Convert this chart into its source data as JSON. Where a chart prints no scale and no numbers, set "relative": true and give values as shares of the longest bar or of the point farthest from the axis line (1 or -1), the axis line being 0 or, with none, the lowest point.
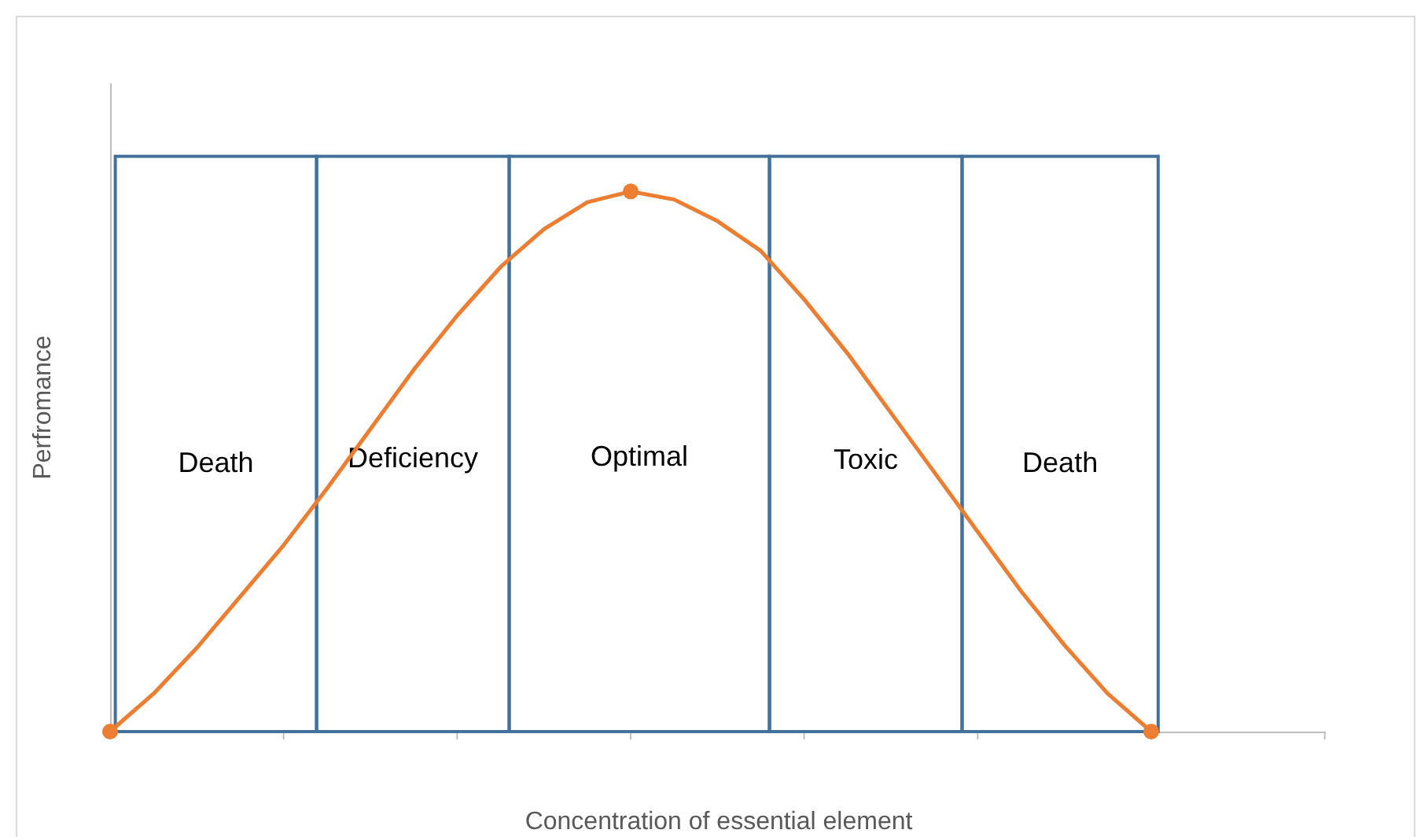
{
  "chart_data": {
    "type": "line",
    "relative": true,
    "xlabel": "Concentration of essential element",
    "ylabel": "Perfromance",
    "categories": [
      null,
      null,
      null,
      null,
      null,
      null,
      null,
      null,
      null,
      null,
      null,
      null,
      null,
      null,
      null,
      null,
      null,
      null,
      null,
      null,
      null,
      null,
      null,
      null,
      null
    ],
    "series": [
      {
        "color": "#ed7d31",
        "values": [
          0,
          0.07,
          0.155,
          0.25,
          0.345,
          0.45,
          0.56,
          0.67,
          0.77,
          0.86,
          0.93,
          0.98,
          1,
          0.985,
          0.945,
          0.89,
          0.8,
          0.7,
          0.59,
          0.48,
          0.37,
          0.26,
          0.16,
          0.07,
          0
        ]
      }
    ],
    "annotations": [
      "Death",
      "Deficiency",
      "Optimal",
      "Toxic",
      "Death"
    ]
  }
}
